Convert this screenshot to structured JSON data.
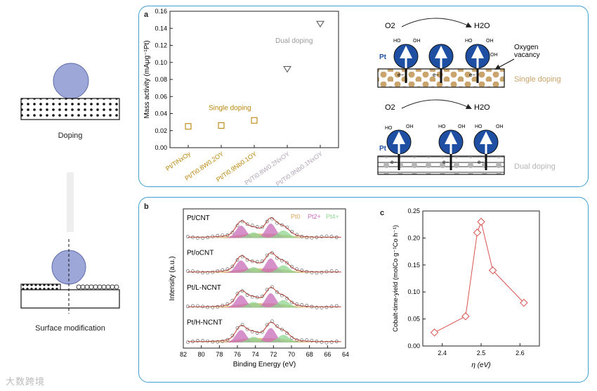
{
  "left": {
    "top_label": "Doping",
    "bottom_label": "Surface modification"
  },
  "panel_a": {
    "letter": "a",
    "ylabel": "Mass activity (mAμg⁻¹Pt)",
    "yticks": [
      "0.00",
      "0.02",
      "0.04",
      "0.06",
      "0.08",
      "0.10",
      "0.12",
      "0.14",
      "0.16"
    ],
    "annotation_single": "Single doping",
    "annotation_dual": "Dual doping",
    "xlabels": [
      "Pt/TiNxOy",
      "Pt/Ti0.8W0.2OY",
      "Pt/Ti0.9Nb0.1OY",
      "Pt/Ti0.8W0.2NxOY",
      "Pt/Ti0.9Nb0.1NxOY"
    ],
    "schematic": {
      "o2": "O2",
      "h2o": "H2O",
      "pt": "Pt",
      "oh": "OH",
      "ho": "HO",
      "e": "e−",
      "oxygen_vacancy_1": "Oxygen",
      "oxygen_vacancy_2": "vacancy",
      "single": "Single doping",
      "dual": "Dual doping"
    }
  },
  "panel_b": {
    "letter": "b",
    "ylabel": "Intensity (a.u.)",
    "xlabel": "Binding Energy (eV)",
    "xticks": [
      "82",
      "80",
      "78",
      "76",
      "74",
      "72",
      "70",
      "68",
      "66",
      "64"
    ],
    "samples": [
      "Pt/CNT",
      "Pt/oCNT",
      "Pt/L-NCNT",
      "Pt/H-NCNT"
    ],
    "legend": [
      "Pt0",
      "Pt2+",
      "Pt4+"
    ]
  },
  "panel_c": {
    "letter": "c",
    "ylabel": "Cobalt-time-yield (molCo g⁻¹Co h⁻¹)",
    "xlabel": "η (eV)",
    "xticks": [
      "2.4",
      "2.5",
      "2.6"
    ],
    "yticks": [
      "0.00",
      "0.05",
      "0.10",
      "0.15",
      "0.20",
      "0.25"
    ]
  },
  "watermark": "大数跨境",
  "chart_data": [
    {
      "type": "scatter",
      "title": "",
      "xlabel": "",
      "ylabel": "Mass activity (mAμg⁻¹Pt)",
      "categories": [
        "Pt/TiNxOy",
        "Pt/Ti0.8W0.2OY",
        "Pt/Ti0.9Nb0.1OY",
        "Pt/Ti0.8W0.2NxOY",
        "Pt/Ti0.9Nb0.1NxOY"
      ],
      "values": [
        0.025,
        0.026,
        0.032,
        0.092,
        0.145
      ],
      "groups": [
        "Single doping",
        "Single doping",
        "Single doping",
        "Dual doping",
        "Dual doping"
      ],
      "ylim": [
        0,
        0.16
      ],
      "colors": {
        "single": "#b8860b",
        "dual": "#8a8a8a"
      }
    },
    {
      "type": "line",
      "title": "",
      "xlabel": "Binding Energy (eV)",
      "ylabel": "Intensity (a.u.)",
      "xlim": [
        82,
        64
      ],
      "series": [
        {
          "name": "Pt/CNT"
        },
        {
          "name": "Pt/oCNT"
        },
        {
          "name": "Pt/L-NCNT"
        },
        {
          "name": "Pt/H-NCNT"
        }
      ],
      "components": [
        "Pt0",
        "Pt2+",
        "Pt4+"
      ],
      "component_colors": [
        "#d9a75e",
        "#c86bb8",
        "#8fd48f"
      ]
    },
    {
      "type": "line",
      "title": "",
      "xlabel": "η (eV)",
      "ylabel": "Cobalt-time-yield (molCo g⁻¹Co h⁻¹)",
      "x": [
        2.38,
        2.46,
        2.49,
        2.5,
        2.53,
        2.61
      ],
      "y": [
        0.025,
        0.055,
        0.21,
        0.23,
        0.14,
        0.08
      ],
      "xlim": [
        2.35,
        2.65
      ],
      "ylim": [
        0,
        0.25
      ],
      "color": "#d9534f"
    }
  ]
}
